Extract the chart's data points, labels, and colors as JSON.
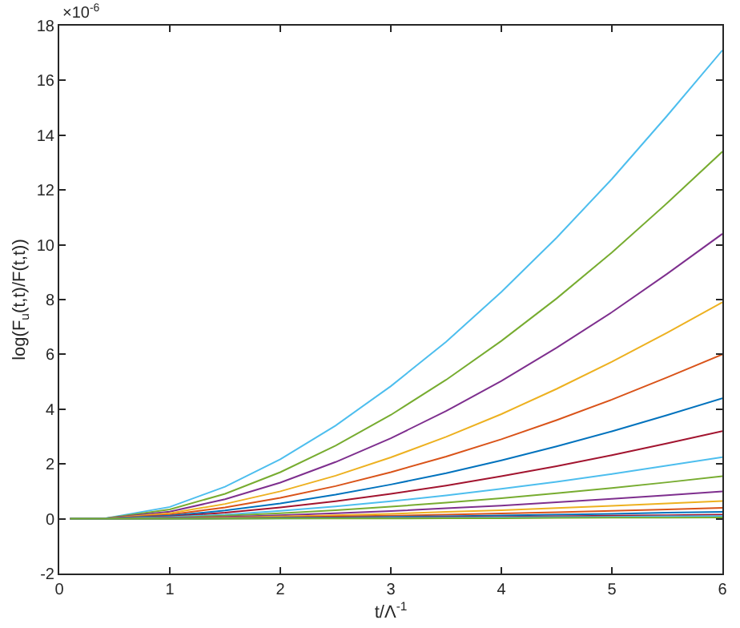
{
  "chart_data": {
    "type": "line",
    "xlabel": "t/Λ$^{-1}$",
    "ylabel": "log(F$_{u}$(t,t)/F(t,t))",
    "annotations": [
      "×10$^{-6}$"
    ],
    "x": [
      0.1,
      0.4,
      1,
      1.5,
      2,
      2.5,
      3,
      3.5,
      4,
      4.5,
      5,
      5.5,
      6
    ],
    "xlim": [
      0,
      6
    ],
    "xticks": [
      0,
      1,
      2,
      3,
      4,
      5,
      6
    ],
    "ylim": [
      -2,
      18
    ],
    "yticks": [
      -2,
      0,
      2,
      4,
      6,
      8,
      10,
      12,
      14,
      16,
      18
    ],
    "marker": "none",
    "line_style": "solid",
    "series": [
      {
        "color": "#4dbeee",
        "values": [
          0,
          0,
          0.43,
          1.17,
          2.17,
          3.4,
          4.84,
          6.46,
          8.28,
          10.26,
          12.4,
          14.71,
          17.1
        ]
      },
      {
        "color": "#77ac30",
        "values": [
          0,
          0,
          0.34,
          0.91,
          1.7,
          2.67,
          3.79,
          5.07,
          6.49,
          8.04,
          9.72,
          11.52,
          13.4
        ]
      },
      {
        "color": "#7e2f8e",
        "values": [
          0,
          0,
          0.26,
          0.71,
          1.32,
          2.07,
          2.94,
          3.93,
          5.03,
          6.24,
          7.54,
          8.94,
          10.4
        ]
      },
      {
        "color": "#edb120",
        "values": [
          0,
          0,
          0.2,
          0.54,
          1.0,
          1.57,
          2.24,
          2.99,
          3.82,
          4.74,
          5.73,
          6.79,
          7.9
        ]
      },
      {
        "color": "#d95319",
        "values": [
          0,
          0,
          0.15,
          0.41,
          0.76,
          1.19,
          1.7,
          2.27,
          2.9,
          3.6,
          4.35,
          5.16,
          6.0
        ]
      },
      {
        "color": "#0072bd",
        "values": [
          0,
          0,
          0.11,
          0.3,
          0.56,
          0.88,
          1.25,
          1.66,
          2.13,
          2.64,
          3.19,
          3.78,
          4.4
        ]
      },
      {
        "color": "#a2142f",
        "values": [
          0,
          0,
          0.08,
          0.22,
          0.41,
          0.64,
          0.91,
          1.21,
          1.55,
          1.92,
          2.32,
          2.75,
          3.2
        ]
      },
      {
        "color": "#4dbeee",
        "values": [
          0,
          0,
          0.06,
          0.15,
          0.29,
          0.45,
          0.64,
          0.85,
          1.09,
          1.35,
          1.63,
          1.94,
          2.25
        ]
      },
      {
        "color": "#77ac30",
        "values": [
          0,
          0,
          0.04,
          0.11,
          0.2,
          0.31,
          0.44,
          0.59,
          0.75,
          0.93,
          1.12,
          1.33,
          1.55
        ]
      },
      {
        "color": "#7e2f8e",
        "values": [
          0,
          0,
          0.03,
          0.07,
          0.13,
          0.2,
          0.28,
          0.38,
          0.48,
          0.6,
          0.73,
          0.86,
          1.0
        ]
      },
      {
        "color": "#edb120",
        "values": [
          0,
          0,
          0.02,
          0.04,
          0.08,
          0.13,
          0.18,
          0.25,
          0.31,
          0.39,
          0.47,
          0.56,
          0.65
        ]
      },
      {
        "color": "#d95319",
        "values": [
          0,
          0,
          0.01,
          0.03,
          0.05,
          0.08,
          0.11,
          0.15,
          0.19,
          0.24,
          0.29,
          0.34,
          0.4
        ]
      },
      {
        "color": "#0072bd",
        "values": [
          0,
          0,
          0.01,
          0.02,
          0.03,
          0.05,
          0.07,
          0.09,
          0.12,
          0.15,
          0.18,
          0.22,
          0.25
        ]
      },
      {
        "color": "#a2142f",
        "values": [
          0,
          0,
          0,
          0.01,
          0.02,
          0.03,
          0.04,
          0.06,
          0.07,
          0.09,
          0.11,
          0.13,
          0.15
        ]
      },
      {
        "color": "#4dbeee",
        "values": [
          0,
          0,
          0,
          0.01,
          0.01,
          0.02,
          0.03,
          0.04,
          0.05,
          0.06,
          0.07,
          0.09,
          0.1
        ]
      },
      {
        "color": "#77ac30",
        "values": [
          0,
          0,
          0,
          0,
          0.01,
          0.01,
          0.01,
          0.02,
          0.02,
          0.03,
          0.04,
          0.04,
          0.05
        ]
      }
    ]
  }
}
